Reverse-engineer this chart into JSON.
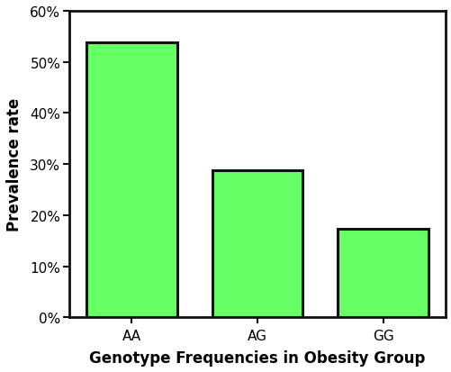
{
  "categories": [
    "AA",
    "AG",
    "GG"
  ],
  "values": [
    0.538,
    0.288,
    0.174
  ],
  "bar_color": "#66FF66",
  "bar_edgecolor": "#111111",
  "bar_linewidth": 2.2,
  "xlabel": "Genotype Frequencies in Obesity Group",
  "ylabel": "Prevalence rate",
  "ylim": [
    0,
    0.6
  ],
  "yticks": [
    0.0,
    0.1,
    0.2,
    0.3,
    0.4,
    0.5,
    0.6
  ],
  "xlabel_fontsize": 12,
  "ylabel_fontsize": 12,
  "tick_fontsize": 11,
  "xlabel_fontweight": "bold",
  "ylabel_fontweight": "bold",
  "background_color": "#ffffff",
  "bar_width": 0.72
}
